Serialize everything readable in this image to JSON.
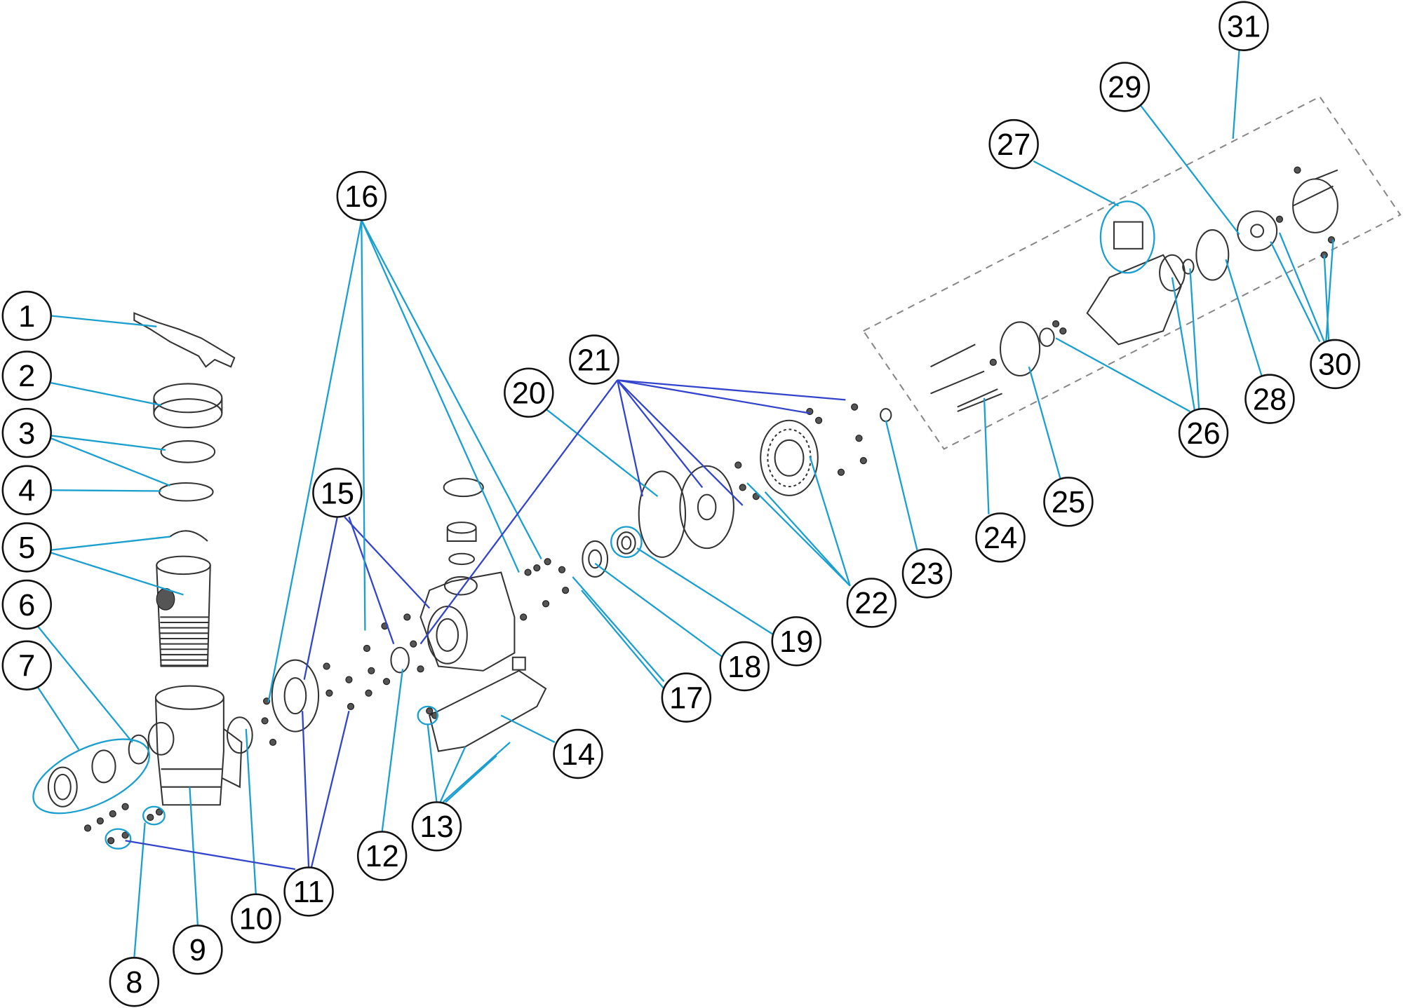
{
  "callouts": [
    "1",
    "2",
    "3",
    "4",
    "5",
    "6",
    "7",
    "8",
    "9",
    "10",
    "11",
    "12",
    "13",
    "14",
    "15",
    "16",
    "17",
    "18",
    "19",
    "20",
    "21",
    "22",
    "23",
    "24",
    "25",
    "26",
    "27",
    "28",
    "29",
    "30",
    "31"
  ],
  "colors": {
    "leader_light": "#1a9fcf",
    "leader_dark": "#3344cc",
    "outline": "#111111",
    "assembly_box": "#888888"
  }
}
